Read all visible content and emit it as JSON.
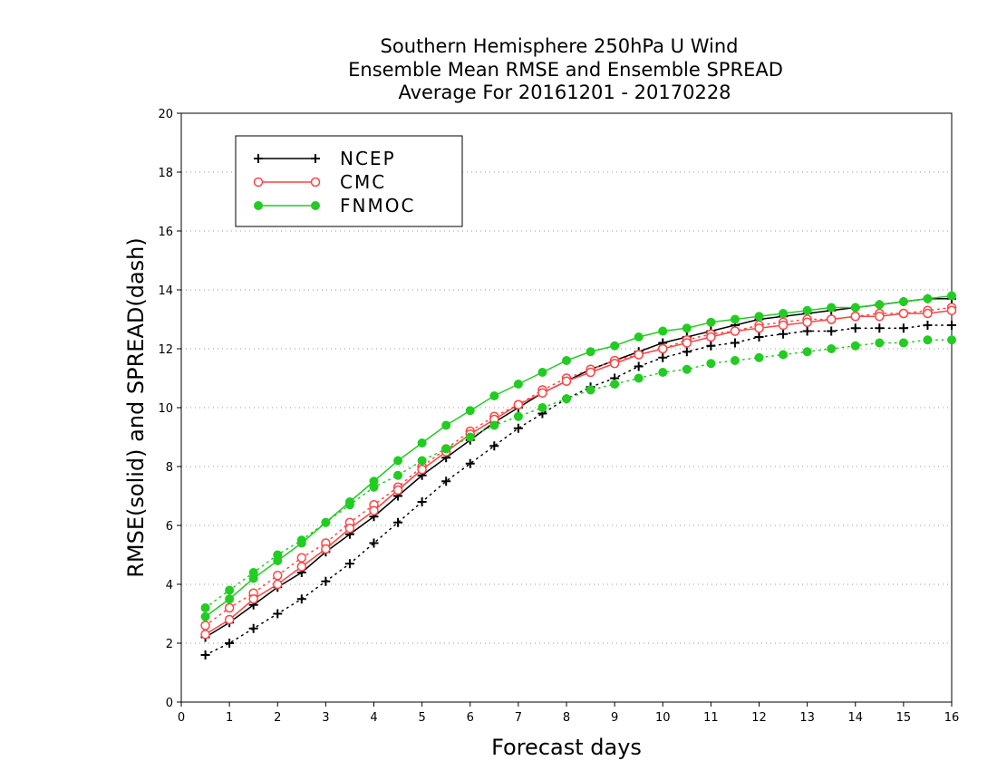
{
  "chart_data": {
    "type": "line",
    "title_lines": [
      "Southern Hemisphere 250hPa U Wind",
      "Ensemble Mean RMSE and Ensemble SPREAD",
      "Average For 20161201 - 20170228"
    ],
    "xlabel": "Forecast days",
    "ylabel": "RMSE(solid) and SPREAD(dash)",
    "xlim": [
      0,
      16
    ],
    "ylim": [
      0,
      20
    ],
    "xticks": [
      0,
      1,
      2,
      3,
      4,
      5,
      6,
      7,
      8,
      9,
      10,
      11,
      12,
      13,
      14,
      15,
      16
    ],
    "yticks": [
      0,
      2,
      4,
      6,
      8,
      10,
      12,
      14,
      16,
      18,
      20
    ],
    "grid": "horizontal dotted",
    "legend_position": "top-left",
    "x": [
      0.5,
      1,
      1.5,
      2,
      2.5,
      3,
      3.5,
      4,
      4.5,
      5,
      5.5,
      6,
      6.5,
      7,
      7.5,
      8,
      8.5,
      9,
      9.5,
      10,
      10.5,
      11,
      11.5,
      12,
      12.5,
      13,
      13.5,
      14,
      14.5,
      15,
      15.5,
      16
    ],
    "series": [
      {
        "name": "NCEP",
        "color": "#000000",
        "marker": "plus",
        "rmse": [
          2.2,
          2.7,
          3.3,
          3.9,
          4.4,
          5.1,
          5.7,
          6.3,
          7.0,
          7.7,
          8.3,
          8.9,
          9.5,
          10.0,
          10.5,
          10.9,
          11.3,
          11.6,
          11.9,
          12.2,
          12.4,
          12.6,
          12.8,
          13.0,
          13.1,
          13.2,
          13.3,
          13.4,
          13.5,
          13.6,
          13.7,
          13.7
        ],
        "spread": [
          1.6,
          2.0,
          2.5,
          3.0,
          3.5,
          4.1,
          4.7,
          5.4,
          6.1,
          6.8,
          7.5,
          8.1,
          8.7,
          9.3,
          9.8,
          10.3,
          10.7,
          11.0,
          11.4,
          11.7,
          11.9,
          12.1,
          12.2,
          12.4,
          12.5,
          12.6,
          12.6,
          12.7,
          12.7,
          12.7,
          12.8,
          12.8
        ]
      },
      {
        "name": "CMC",
        "color": "#ff4444",
        "marker": "open-circle",
        "rmse": [
          2.3,
          2.8,
          3.5,
          4.0,
          4.6,
          5.2,
          5.9,
          6.5,
          7.2,
          7.9,
          8.5,
          9.1,
          9.6,
          10.1,
          10.5,
          10.9,
          11.2,
          11.5,
          11.8,
          12.0,
          12.2,
          12.4,
          12.6,
          12.7,
          12.8,
          12.9,
          13.0,
          13.1,
          13.1,
          13.2,
          13.2,
          13.3
        ],
        "spread": [
          2.6,
          3.2,
          3.7,
          4.3,
          4.9,
          5.4,
          6.1,
          6.7,
          7.3,
          8.0,
          8.6,
          9.2,
          9.7,
          10.1,
          10.6,
          11.0,
          11.3,
          11.6,
          11.8,
          12.0,
          12.3,
          12.5,
          12.6,
          12.8,
          12.9,
          13.0,
          13.0,
          13.1,
          13.2,
          13.2,
          13.3,
          13.4
        ]
      },
      {
        "name": "FNMOC",
        "color": "#22cc22",
        "marker": "filled-circle",
        "rmse": [
          2.9,
          3.5,
          4.2,
          4.8,
          5.4,
          6.1,
          6.8,
          7.5,
          8.2,
          8.8,
          9.4,
          9.9,
          10.4,
          10.8,
          11.2,
          11.6,
          11.9,
          12.1,
          12.4,
          12.6,
          12.7,
          12.9,
          13.0,
          13.1,
          13.2,
          13.3,
          13.4,
          13.4,
          13.5,
          13.6,
          13.7,
          13.8
        ],
        "spread": [
          3.2,
          3.8,
          4.4,
          5.0,
          5.5,
          6.1,
          6.7,
          7.3,
          7.7,
          8.2,
          8.6,
          9.0,
          9.4,
          9.7,
          10.0,
          10.3,
          10.6,
          10.8,
          11.0,
          11.2,
          11.3,
          11.5,
          11.6,
          11.7,
          11.8,
          11.9,
          12.0,
          12.1,
          12.2,
          12.2,
          12.3,
          12.3
        ]
      }
    ]
  }
}
